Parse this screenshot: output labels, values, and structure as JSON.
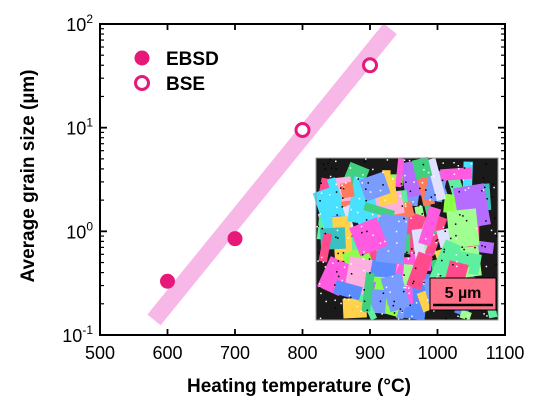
{
  "chart_data": {
    "type": "scatter",
    "xlabel": "Heating temperature (°C)",
    "ylabel": "Average grain size (µm)",
    "xlim": [
      500,
      1100
    ],
    "ylim": [
      0.1,
      100
    ],
    "y_scale": "log",
    "grid": false,
    "legend_position": "top-left",
    "x_ticks": [
      500,
      600,
      700,
      800,
      900,
      1000,
      1100
    ],
    "y_ticks": [
      {
        "value": 0.1,
        "base": "10",
        "exp": "-1"
      },
      {
        "value": 1,
        "base": "10",
        "exp": "0"
      },
      {
        "value": 10,
        "base": "10",
        "exp": "1"
      },
      {
        "value": 100,
        "base": "10",
        "exp": "2"
      }
    ],
    "series": [
      {
        "name": "EBSD",
        "marker": "filled-circle",
        "color": "#e6197a",
        "points": [
          {
            "x": 600,
            "y": 0.33
          },
          {
            "x": 700,
            "y": 0.85
          }
        ]
      },
      {
        "name": "BSE",
        "marker": "open-circle",
        "color": "#e6197a",
        "points": [
          {
            "x": 800,
            "y": 9.5
          },
          {
            "x": 900,
            "y": 40
          }
        ]
      }
    ],
    "trend_band": {
      "color": "#f7b8e8",
      "from": {
        "x": 580,
        "y": 0.14
      },
      "to": {
        "x": 930,
        "y": 90
      }
    },
    "inset": {
      "kind": "EBSD orientation map",
      "scale_bar_label": "5 µm"
    }
  }
}
